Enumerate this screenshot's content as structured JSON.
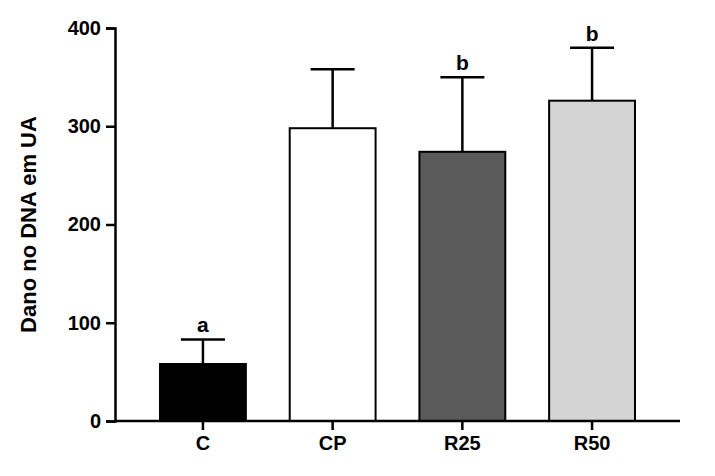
{
  "chart_data": {
    "type": "bar",
    "y_label": "Dano no DNA em UA",
    "categories": [
      "C",
      "CP",
      "R25",
      "R50"
    ],
    "values": [
      58,
      298,
      274,
      326
    ],
    "errors": [
      25,
      60,
      76,
      54
    ],
    "annotations": [
      "a",
      null,
      "b",
      "b"
    ],
    "colors": [
      "#000000",
      "#ffffff",
      "#5a5a5a",
      "#d4d4d4"
    ],
    "ylim": [
      0,
      400
    ],
    "yticks": [
      0,
      100,
      200,
      300,
      400
    ],
    "grid": false
  }
}
